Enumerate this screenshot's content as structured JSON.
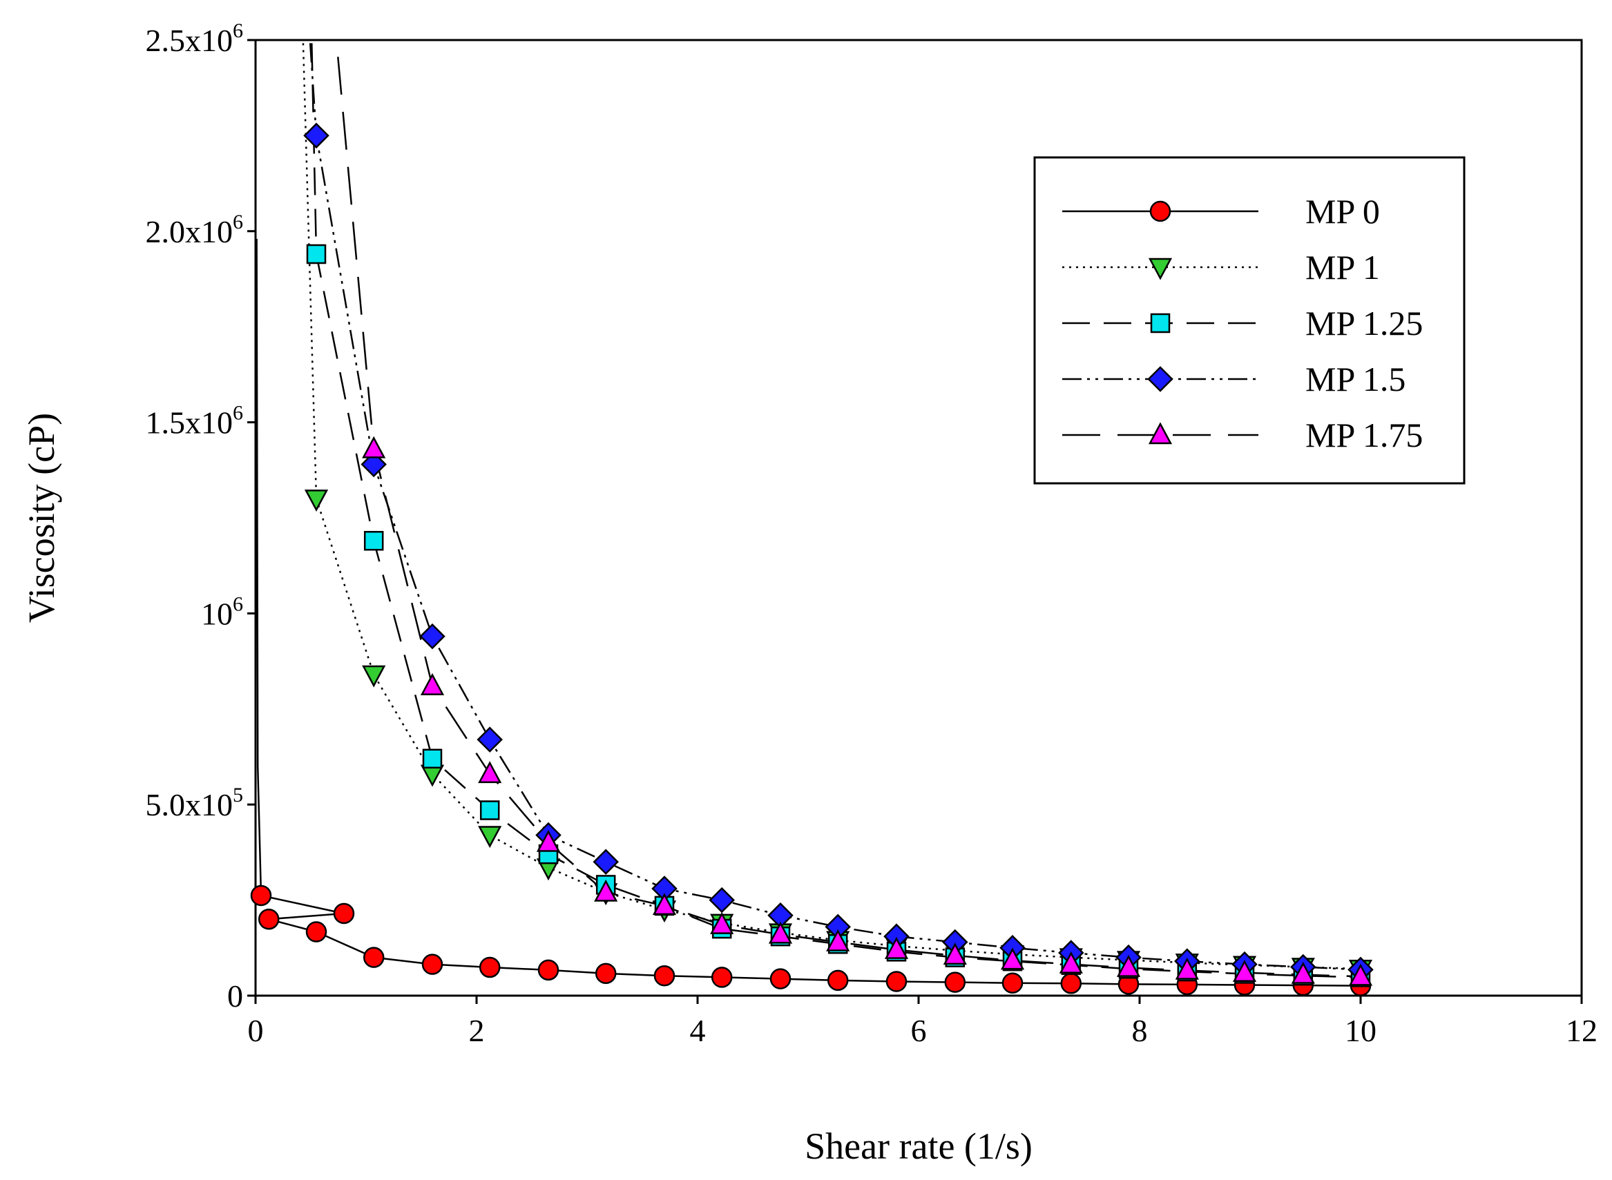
{
  "chart_data": {
    "type": "line",
    "title": "",
    "xlabel": "Shear rate (1/s)",
    "ylabel": "Viscosity (cP)",
    "xlim": [
      0,
      12
    ],
    "ylim": [
      0,
      2500000
    ],
    "grid": false,
    "legend_position": "top-right",
    "x_ticks": [
      {
        "value": 0,
        "label": "0"
      },
      {
        "value": 2,
        "label": "2"
      },
      {
        "value": 4,
        "label": "4"
      },
      {
        "value": 6,
        "label": "6"
      },
      {
        "value": 8,
        "label": "8"
      },
      {
        "value": 10,
        "label": "10"
      },
      {
        "value": 12,
        "label": "12"
      }
    ],
    "y_ticks": [
      {
        "value": 0,
        "mantissa": "0",
        "exp": ""
      },
      {
        "value": 500000,
        "mantissa": "5.0x10",
        "exp": "5"
      },
      {
        "value": 1000000,
        "mantissa": "10",
        "exp": "6"
      },
      {
        "value": 1500000,
        "mantissa": "1.5x10",
        "exp": "6"
      },
      {
        "value": 2000000,
        "mantissa": "2.0x10",
        "exp": "6"
      },
      {
        "value": 2500000,
        "mantissa": "2.5x10",
        "exp": "6"
      }
    ],
    "series": [
      {
        "name": "MP 0",
        "marker": "circle",
        "color": "#ff0000",
        "dash": "",
        "line_points": [
          [
            0.01,
            1980000
          ],
          [
            0.02,
            600000
          ],
          [
            0.05,
            262000
          ],
          [
            0.8,
            215000
          ],
          [
            0.12,
            200000
          ],
          [
            0.55,
            167000
          ],
          [
            1.07,
            100000
          ],
          [
            1.6,
            82000
          ],
          [
            2.12,
            74000
          ],
          [
            2.65,
            67000
          ],
          [
            3.17,
            58000
          ],
          [
            3.7,
            52000
          ],
          [
            4.22,
            48000
          ],
          [
            4.75,
            44000
          ],
          [
            5.27,
            40000
          ],
          [
            5.8,
            37000
          ],
          [
            6.33,
            35000
          ],
          [
            6.85,
            33000
          ],
          [
            7.38,
            32000
          ],
          [
            7.9,
            30000
          ],
          [
            8.43,
            29000
          ],
          [
            8.95,
            28000
          ],
          [
            9.48,
            27000
          ],
          [
            10.0,
            26000
          ]
        ],
        "marker_points": [
          [
            0.05,
            262000
          ],
          [
            0.12,
            200000
          ],
          [
            0.55,
            167000
          ],
          [
            0.8,
            215000
          ],
          [
            1.07,
            100000
          ],
          [
            1.6,
            82000
          ],
          [
            2.12,
            74000
          ],
          [
            2.65,
            67000
          ],
          [
            3.17,
            58000
          ],
          [
            3.7,
            52000
          ],
          [
            4.22,
            48000
          ],
          [
            4.75,
            44000
          ],
          [
            5.27,
            40000
          ],
          [
            5.8,
            37000
          ],
          [
            6.33,
            35000
          ],
          [
            6.85,
            33000
          ],
          [
            7.38,
            32000
          ],
          [
            7.9,
            30000
          ],
          [
            8.43,
            29000
          ],
          [
            8.95,
            28000
          ],
          [
            9.48,
            27000
          ],
          [
            10.0,
            26000
          ]
        ]
      },
      {
        "name": "MP 1",
        "marker": "triangle-down",
        "color": "#33cc33",
        "dash": "3,7",
        "line_points": [
          [
            0.42,
            2600000
          ],
          [
            0.55,
            1300000
          ],
          [
            1.07,
            840000
          ],
          [
            1.6,
            580000
          ],
          [
            2.12,
            420000
          ],
          [
            2.65,
            335000
          ],
          [
            3.17,
            270000
          ],
          [
            3.7,
            225000
          ],
          [
            4.22,
            190000
          ],
          [
            4.75,
            165000
          ],
          [
            5.27,
            145000
          ],
          [
            5.8,
            130000
          ],
          [
            6.33,
            118000
          ],
          [
            6.85,
            108000
          ],
          [
            7.38,
            100000
          ],
          [
            7.9,
            93000
          ],
          [
            8.43,
            86000
          ],
          [
            8.95,
            80000
          ],
          [
            9.48,
            75000
          ],
          [
            10.0,
            70000
          ]
        ],
        "marker_points": [
          [
            0.55,
            1300000
          ],
          [
            1.07,
            840000
          ],
          [
            1.6,
            580000
          ],
          [
            2.12,
            420000
          ],
          [
            2.65,
            335000
          ],
          [
            3.17,
            270000
          ],
          [
            3.7,
            225000
          ],
          [
            4.22,
            190000
          ],
          [
            4.75,
            165000
          ],
          [
            5.27,
            145000
          ],
          [
            5.8,
            130000
          ],
          [
            6.33,
            118000
          ],
          [
            6.85,
            108000
          ],
          [
            7.38,
            100000
          ],
          [
            7.9,
            93000
          ],
          [
            8.43,
            86000
          ],
          [
            8.95,
            80000
          ],
          [
            9.48,
            75000
          ],
          [
            10.0,
            70000
          ]
        ]
      },
      {
        "name": "MP 1.25",
        "marker": "square",
        "color": "#00e5ee",
        "dash": "40,20",
        "line_points": [
          [
            0.5,
            2600000
          ],
          [
            0.55,
            1940000
          ],
          [
            1.07,
            1190000
          ],
          [
            1.6,
            620000
          ],
          [
            2.12,
            485000
          ],
          [
            2.65,
            370000
          ],
          [
            3.17,
            290000
          ],
          [
            3.7,
            235000
          ],
          [
            4.22,
            175000
          ],
          [
            4.75,
            155000
          ],
          [
            5.27,
            135000
          ],
          [
            5.8,
            115000
          ],
          [
            6.33,
            100000
          ],
          [
            6.85,
            90000
          ],
          [
            7.38,
            80000
          ],
          [
            7.9,
            70000
          ],
          [
            8.43,
            63000
          ],
          [
            8.95,
            57000
          ],
          [
            9.48,
            52000
          ],
          [
            10.0,
            48000
          ]
        ],
        "marker_points": [
          [
            0.55,
            1940000
          ],
          [
            1.07,
            1190000
          ],
          [
            1.6,
            620000
          ],
          [
            2.12,
            485000
          ],
          [
            2.65,
            370000
          ],
          [
            3.17,
            290000
          ],
          [
            3.7,
            235000
          ],
          [
            4.22,
            175000
          ],
          [
            4.75,
            155000
          ],
          [
            5.27,
            135000
          ],
          [
            5.8,
            115000
          ],
          [
            6.33,
            100000
          ],
          [
            6.85,
            90000
          ],
          [
            7.38,
            80000
          ],
          [
            7.9,
            70000
          ],
          [
            8.43,
            63000
          ],
          [
            8.95,
            57000
          ],
          [
            9.48,
            52000
          ],
          [
            10.0,
            48000
          ]
        ]
      },
      {
        "name": "MP 1.5",
        "marker": "diamond",
        "color": "#1a1aff",
        "dash": "28,8,4,8,4,8",
        "line_points": [
          [
            0.47,
            2600000
          ],
          [
            0.55,
            2250000
          ],
          [
            1.07,
            1390000
          ],
          [
            1.6,
            940000
          ],
          [
            2.12,
            670000
          ],
          [
            2.65,
            420000
          ],
          [
            3.17,
            350000
          ],
          [
            3.7,
            280000
          ],
          [
            4.22,
            250000
          ],
          [
            4.75,
            210000
          ],
          [
            5.27,
            180000
          ],
          [
            5.8,
            155000
          ],
          [
            6.33,
            140000
          ],
          [
            6.85,
            125000
          ],
          [
            7.38,
            112000
          ],
          [
            7.9,
            100000
          ],
          [
            8.43,
            90000
          ],
          [
            8.95,
            82000
          ],
          [
            9.48,
            75000
          ],
          [
            10.0,
            68000
          ]
        ],
        "marker_points": [
          [
            0.55,
            2250000
          ],
          [
            1.07,
            1390000
          ],
          [
            1.6,
            940000
          ],
          [
            2.12,
            670000
          ],
          [
            2.65,
            420000
          ],
          [
            3.17,
            350000
          ],
          [
            3.7,
            280000
          ],
          [
            4.22,
            250000
          ],
          [
            4.75,
            210000
          ],
          [
            5.27,
            180000
          ],
          [
            5.8,
            155000
          ],
          [
            6.33,
            140000
          ],
          [
            6.85,
            125000
          ],
          [
            7.38,
            112000
          ],
          [
            7.9,
            100000
          ],
          [
            8.43,
            90000
          ],
          [
            8.95,
            82000
          ],
          [
            9.48,
            75000
          ],
          [
            10.0,
            68000
          ]
        ]
      },
      {
        "name": "MP 1.75",
        "marker": "triangle-up",
        "color": "#ff00ff",
        "dash": "55,25",
        "line_points": [
          [
            0.7,
            2600000
          ],
          [
            1.07,
            1430000
          ],
          [
            1.6,
            810000
          ],
          [
            2.12,
            580000
          ],
          [
            2.65,
            400000
          ],
          [
            3.17,
            270000
          ],
          [
            3.7,
            235000
          ],
          [
            4.22,
            185000
          ],
          [
            4.75,
            160000
          ],
          [
            5.27,
            140000
          ],
          [
            5.8,
            120000
          ],
          [
            6.33,
            105000
          ],
          [
            6.85,
            92000
          ],
          [
            7.38,
            82000
          ],
          [
            7.9,
            73000
          ],
          [
            8.43,
            66000
          ],
          [
            8.95,
            60000
          ],
          [
            9.48,
            55000
          ],
          [
            10.0,
            50000
          ]
        ],
        "marker_points": [
          [
            1.07,
            1430000
          ],
          [
            1.6,
            810000
          ],
          [
            2.12,
            580000
          ],
          [
            2.65,
            400000
          ],
          [
            3.17,
            270000
          ],
          [
            3.7,
            235000
          ],
          [
            4.22,
            185000
          ],
          [
            4.75,
            160000
          ],
          [
            5.27,
            140000
          ],
          [
            5.8,
            120000
          ],
          [
            6.33,
            105000
          ],
          [
            6.85,
            92000
          ],
          [
            7.38,
            82000
          ],
          [
            7.9,
            73000
          ],
          [
            8.43,
            66000
          ],
          [
            8.95,
            60000
          ],
          [
            9.48,
            55000
          ],
          [
            10.0,
            50000
          ]
        ]
      }
    ]
  }
}
